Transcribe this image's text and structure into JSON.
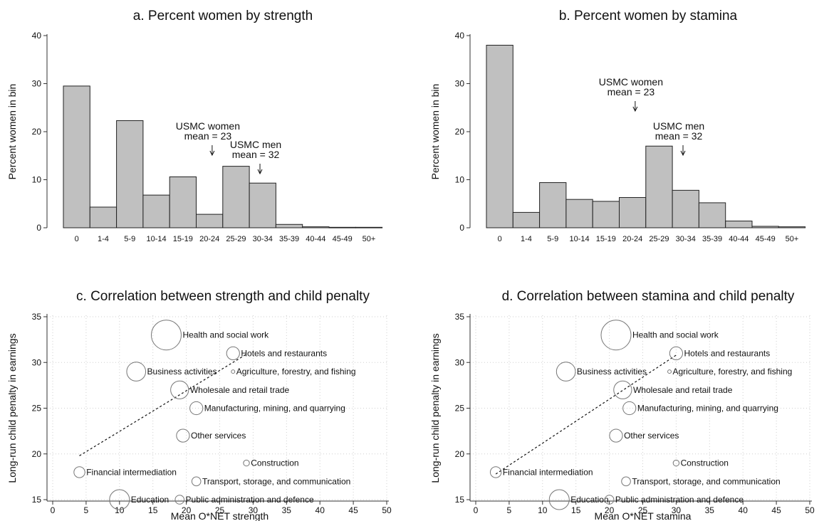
{
  "chart_data": [
    {
      "type": "bar",
      "title": "a. Percent women by strength",
      "ylabel": "Percent women in bin",
      "xlabel": "",
      "ylim": [
        0,
        40
      ],
      "yticks": [
        0,
        10,
        20,
        30,
        40
      ],
      "categories": [
        "0",
        "1-4",
        "5-9",
        "10-14",
        "15-19",
        "20-24",
        "25-29",
        "30-34",
        "35-39",
        "40-44",
        "45-49",
        "50+"
      ],
      "values": [
        29.5,
        4.3,
        22.3,
        6.8,
        10.6,
        2.8,
        12.8,
        9.3,
        0.7,
        0.2,
        0.1,
        0.1
      ],
      "grid": false,
      "annotations": [
        {
          "line1": "USMC women",
          "line2": "mean = 23",
          "arrow": "↓",
          "x_value": 23
        },
        {
          "line1": "USMC men",
          "line2": "mean = 32",
          "arrow": "↓",
          "x_value": 32
        }
      ]
    },
    {
      "type": "bar",
      "title": "b. Percent women by stamina",
      "ylabel": "Percent women in bin",
      "xlabel": "",
      "ylim": [
        0,
        40
      ],
      "yticks": [
        0,
        10,
        20,
        30,
        40
      ],
      "categories": [
        "0",
        "1-4",
        "5-9",
        "10-14",
        "15-19",
        "20-24",
        "25-29",
        "30-34",
        "35-39",
        "40-44",
        "45-49",
        "50+"
      ],
      "values": [
        38.0,
        3.2,
        9.4,
        5.9,
        5.5,
        6.3,
        17.0,
        7.8,
        5.2,
        1.4,
        0.3,
        0.2
      ],
      "grid": false,
      "annotations": [
        {
          "line1": "USMC women",
          "line2": "mean = 23",
          "arrow": "↓",
          "x_value": 23
        },
        {
          "line1": "USMC men",
          "line2": "mean = 32",
          "arrow": "↓",
          "x_value": 32
        }
      ]
    },
    {
      "type": "scatter",
      "title": "c. Correlation between strength and child penalty",
      "xlabel": "Mean O*NET strength",
      "ylabel": "Long-run child penalty in earnings",
      "xlim": [
        0,
        50
      ],
      "ylim": [
        15,
        35
      ],
      "xticks": [
        0,
        5,
        10,
        15,
        20,
        25,
        30,
        35,
        40,
        45,
        50
      ],
      "yticks": [
        15,
        20,
        25,
        30,
        35
      ],
      "grid": true,
      "fit_line": {
        "x": [
          4,
          29
        ],
        "y": [
          19.8,
          30.9
        ]
      },
      "points": [
        {
          "label": "Health and social work",
          "x": 17,
          "y": 33,
          "size": 3.0
        },
        {
          "label": "Hotels and restaurants",
          "x": 27,
          "y": 31,
          "size": 1.3
        },
        {
          "label": "Business activities",
          "x": 12.5,
          "y": 29,
          "size": 1.9
        },
        {
          "label": "Agriculture, forestry, and fishing",
          "x": 27,
          "y": 29,
          "size": 0.35
        },
        {
          "label": "Wholesale and retail trade",
          "x": 19,
          "y": 27,
          "size": 1.8
        },
        {
          "label": "Manufacturing, mining, and quarrying",
          "x": 21.5,
          "y": 25,
          "size": 1.3
        },
        {
          "label": "Other services",
          "x": 19.5,
          "y": 22,
          "size": 1.3
        },
        {
          "label": "Construction",
          "x": 29,
          "y": 19,
          "size": 0.6
        },
        {
          "label": "Financial intermediation",
          "x": 4,
          "y": 18,
          "size": 1.1
        },
        {
          "label": "Transport, storage, and communication",
          "x": 21.5,
          "y": 17,
          "size": 0.9
        },
        {
          "label": "Education",
          "x": 10,
          "y": 15,
          "size": 2.0
        },
        {
          "label": "Public administration and defence",
          "x": 19,
          "y": 15,
          "size": 0.9
        }
      ]
    },
    {
      "type": "scatter",
      "title": "d. Correlation between stamina and child penalty",
      "xlabel": "Mean O*NET stamina",
      "ylabel": "Long-run child penalty in earnings",
      "xlim": [
        0,
        50
      ],
      "ylim": [
        15,
        35
      ],
      "xticks": [
        0,
        5,
        10,
        15,
        20,
        25,
        30,
        35,
        40,
        45,
        50
      ],
      "yticks": [
        15,
        20,
        25,
        30,
        35
      ],
      "grid": true,
      "fit_line": {
        "x": [
          3,
          30
        ],
        "y": [
          17.8,
          30.8
        ]
      },
      "points": [
        {
          "label": "Health and social work",
          "x": 21,
          "y": 33,
          "size": 3.0
        },
        {
          "label": "Hotels and restaurants",
          "x": 30,
          "y": 31,
          "size": 1.3
        },
        {
          "label": "Business activities",
          "x": 13.5,
          "y": 29,
          "size": 1.9
        },
        {
          "label": "Agriculture, forestry, and fishing",
          "x": 29,
          "y": 29,
          "size": 0.35
        },
        {
          "label": "Wholesale and retail trade",
          "x": 22,
          "y": 27,
          "size": 1.8
        },
        {
          "label": "Manufacturing, mining, and quarrying",
          "x": 23,
          "y": 25,
          "size": 1.3
        },
        {
          "label": "Other services",
          "x": 21,
          "y": 22,
          "size": 1.3
        },
        {
          "label": "Construction",
          "x": 30,
          "y": 19,
          "size": 0.6
        },
        {
          "label": "Financial intermediation",
          "x": 3,
          "y": 18,
          "size": 1.1
        },
        {
          "label": "Transport, storage, and communication",
          "x": 22.5,
          "y": 17,
          "size": 0.9
        },
        {
          "label": "Education",
          "x": 12.5,
          "y": 15,
          "size": 2.0
        },
        {
          "label": "Public administration and defence",
          "x": 20,
          "y": 15,
          "size": 0.9
        }
      ]
    }
  ],
  "colors": {
    "bar_fill": "#c0c0c0",
    "bar_stroke": "#222222",
    "marker_stroke": "#777777",
    "grid": "#cfcfcf",
    "axis": "#333333"
  }
}
